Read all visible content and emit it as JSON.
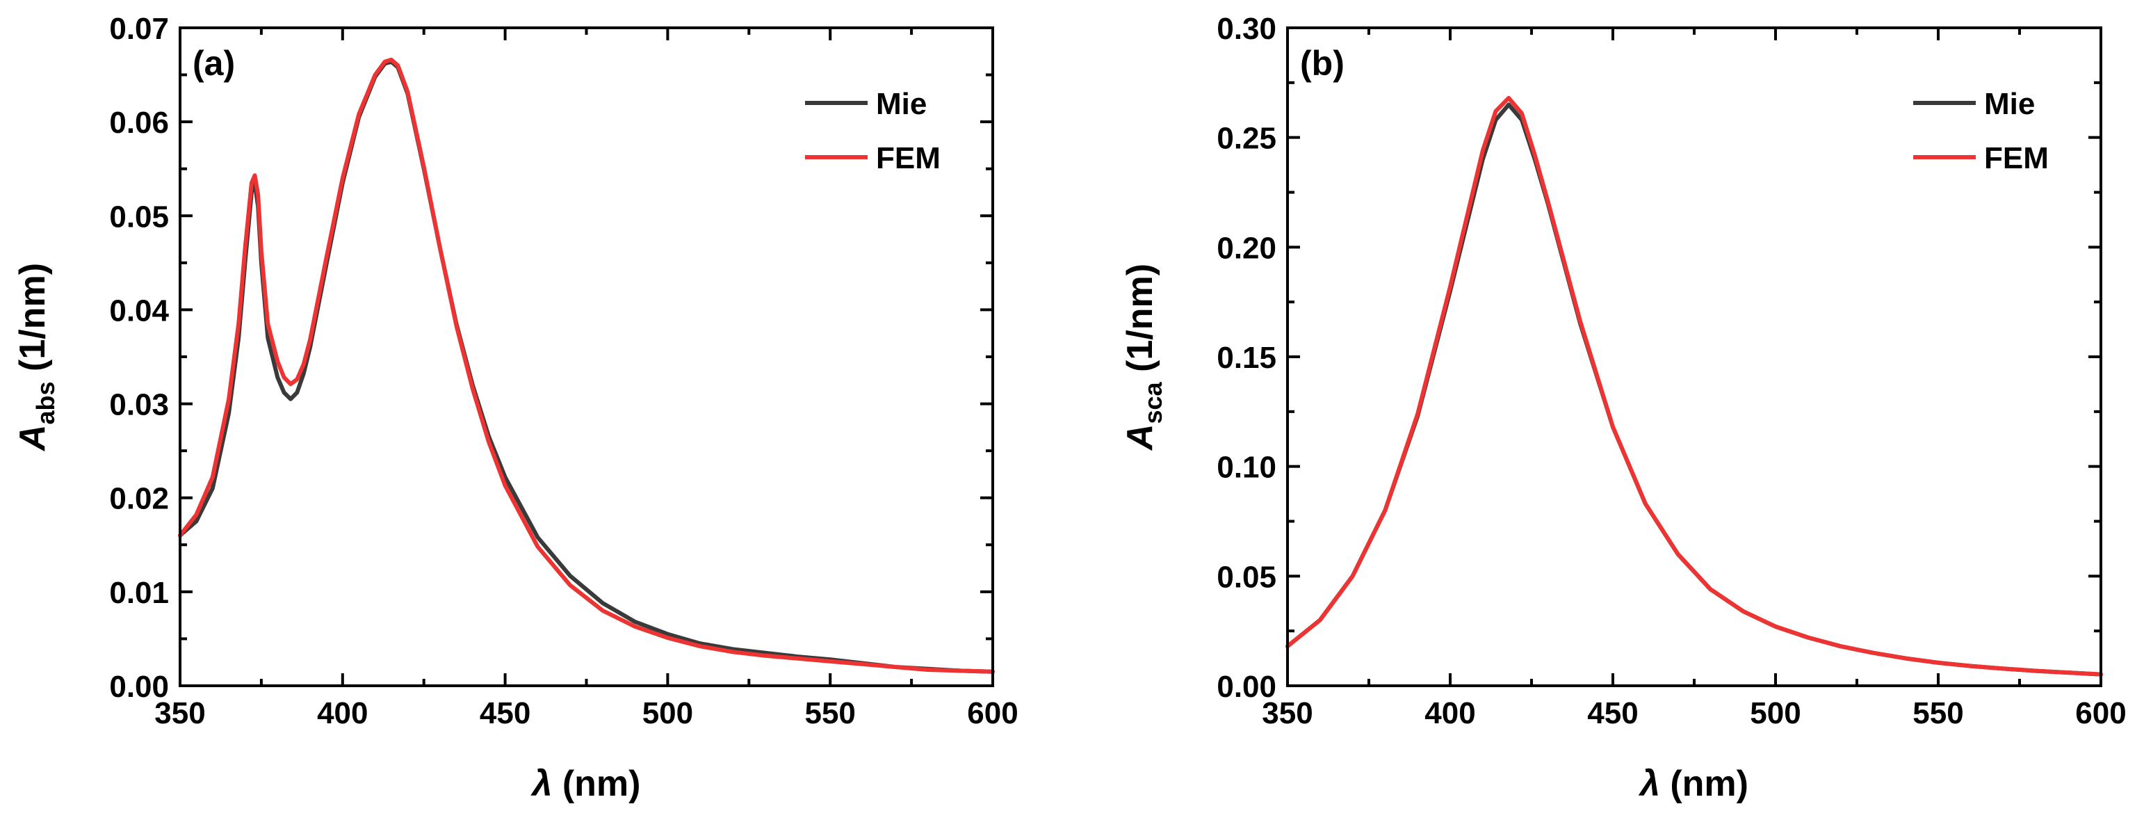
{
  "figure": {
    "background": "#ffffff"
  },
  "chart_data": [
    {
      "type": "line",
      "panel_label": "(a)",
      "xlabel_symbol": "λ",
      "xlabel_unit": " (nm)",
      "ylabel_main": "A",
      "ylabel_sub": "abs",
      "ylabel_unit": " (1/nm)",
      "xlim": [
        350,
        600
      ],
      "ylim": [
        0,
        0.07
      ],
      "xticks": [
        350,
        400,
        450,
        500,
        550,
        600
      ],
      "xtick_labels": [
        "350",
        "400",
        "450",
        "500",
        "550",
        "600"
      ],
      "yticks": [
        0,
        0.01,
        0.02,
        0.03,
        0.04,
        0.05,
        0.06,
        0.07
      ],
      "ytick_labels": [
        "0.00",
        "0.01",
        "0.02",
        "0.03",
        "0.04",
        "0.05",
        "0.06",
        "0.07"
      ],
      "legend_position": "top-right",
      "series": [
        {
          "name": "Mie",
          "color": "#3a3a3a",
          "x": [
            350,
            355,
            360,
            365,
            368,
            370,
            372,
            373,
            374,
            375,
            377,
            380,
            382,
            384,
            386,
            388,
            390,
            395,
            400,
            405,
            410,
            413,
            415,
            417,
            420,
            425,
            430,
            435,
            440,
            445,
            450,
            460,
            470,
            480,
            490,
            500,
            510,
            520,
            530,
            540,
            550,
            560,
            570,
            580,
            590,
            600
          ],
          "y": [
            0.016,
            0.0175,
            0.021,
            0.029,
            0.037,
            0.045,
            0.0525,
            0.0535,
            0.051,
            0.045,
            0.037,
            0.0328,
            0.0312,
            0.0305,
            0.0312,
            0.0332,
            0.036,
            0.0448,
            0.0535,
            0.0605,
            0.0648,
            0.0662,
            0.0664,
            0.0658,
            0.063,
            0.055,
            0.0465,
            0.0385,
            0.032,
            0.0265,
            0.0222,
            0.0158,
            0.0117,
            0.0088,
            0.0068,
            0.0055,
            0.0045,
            0.0039,
            0.0035,
            0.0031,
            0.0028,
            0.0024,
            0.002,
            0.0018,
            0.0016,
            0.0015
          ]
        },
        {
          "name": "FEM",
          "color": "#ee3333",
          "x": [
            350,
            355,
            360,
            365,
            368,
            370,
            372,
            373,
            374,
            375,
            377,
            380,
            382,
            384,
            386,
            388,
            390,
            395,
            400,
            405,
            410,
            413,
            415,
            417,
            420,
            425,
            430,
            435,
            440,
            445,
            450,
            460,
            470,
            480,
            490,
            500,
            510,
            520,
            530,
            540,
            550,
            560,
            570,
            580,
            590,
            600
          ],
          "y": [
            0.016,
            0.0182,
            0.0222,
            0.0305,
            0.0385,
            0.0465,
            0.0535,
            0.0543,
            0.0522,
            0.0462,
            0.0385,
            0.0345,
            0.0328,
            0.0321,
            0.0326,
            0.0342,
            0.0368,
            0.0455,
            0.054,
            0.0608,
            0.065,
            0.0664,
            0.0666,
            0.066,
            0.0632,
            0.0552,
            0.0465,
            0.0383,
            0.0316,
            0.0259,
            0.0213,
            0.0148,
            0.0107,
            0.008,
            0.0063,
            0.0051,
            0.0042,
            0.0036,
            0.0032,
            0.0029,
            0.0026,
            0.0023,
            0.002,
            0.0017,
            0.0016,
            0.0015
          ]
        }
      ]
    },
    {
      "type": "line",
      "panel_label": "(b)",
      "xlabel_symbol": "λ",
      "xlabel_unit": " (nm)",
      "ylabel_main": "A",
      "ylabel_sub": "sca",
      "ylabel_unit": " (1/nm)",
      "xlim": [
        350,
        600
      ],
      "ylim": [
        0,
        0.3
      ],
      "xticks": [
        350,
        400,
        450,
        500,
        550,
        600
      ],
      "xtick_labels": [
        "350",
        "400",
        "450",
        "500",
        "550",
        "600"
      ],
      "yticks": [
        0,
        0.05,
        0.1,
        0.15,
        0.2,
        0.25,
        0.3
      ],
      "ytick_labels": [
        "0.00",
        "0.05",
        "0.10",
        "0.15",
        "0.20",
        "0.25",
        "0.30"
      ],
      "legend_position": "top-right",
      "series": [
        {
          "name": "Mie",
          "color": "#3a3a3a",
          "x": [
            350,
            360,
            370,
            380,
            390,
            400,
            405,
            410,
            414,
            418,
            422,
            426,
            430,
            440,
            450,
            460,
            470,
            480,
            490,
            500,
            510,
            520,
            530,
            540,
            550,
            560,
            570,
            580,
            590,
            600
          ],
          "y": [
            0.018,
            0.03,
            0.05,
            0.08,
            0.123,
            0.18,
            0.21,
            0.24,
            0.258,
            0.265,
            0.258,
            0.24,
            0.22,
            0.165,
            0.118,
            0.083,
            0.06,
            0.044,
            0.034,
            0.027,
            0.022,
            0.018,
            0.015,
            0.0125,
            0.0105,
            0.009,
            0.0078,
            0.0068,
            0.006,
            0.0052
          ]
        },
        {
          "name": "FEM",
          "color": "#ee3333",
          "x": [
            350,
            360,
            370,
            380,
            390,
            400,
            405,
            410,
            414,
            418,
            422,
            426,
            430,
            440,
            450,
            460,
            470,
            480,
            490,
            500,
            510,
            520,
            530,
            540,
            550,
            560,
            570,
            580,
            590,
            600
          ],
          "y": [
            0.018,
            0.03,
            0.05,
            0.08,
            0.124,
            0.182,
            0.213,
            0.244,
            0.262,
            0.268,
            0.261,
            0.242,
            0.221,
            0.166,
            0.118,
            0.083,
            0.06,
            0.044,
            0.034,
            0.027,
            0.022,
            0.018,
            0.015,
            0.0125,
            0.0105,
            0.009,
            0.0078,
            0.0068,
            0.006,
            0.0052
          ]
        }
      ]
    }
  ]
}
